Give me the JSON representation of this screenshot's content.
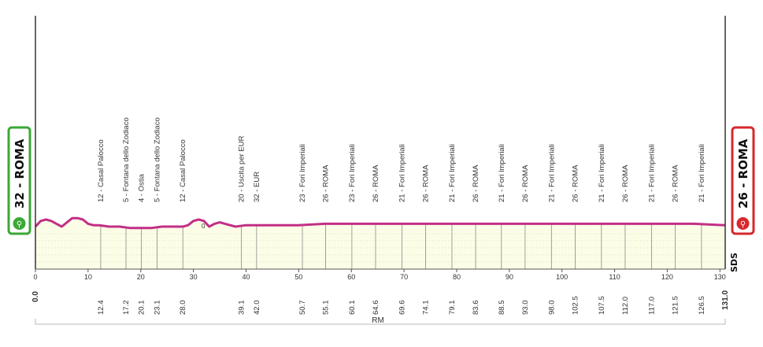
{
  "chart_data": {
    "type": "area",
    "title": "",
    "xlabel": "",
    "ylabel": "",
    "xlim": [
      0,
      131
    ],
    "x_ticks": [
      "0",
      "10",
      "20",
      "30",
      "40",
      "50",
      "60",
      "70",
      "80",
      "90",
      "100",
      "110",
      "120",
      "130"
    ],
    "x_tick_values": [
      0,
      10,
      20,
      30,
      40,
      50,
      60,
      70,
      80,
      90,
      100,
      110,
      120,
      130
    ],
    "start": {
      "label": "0.0",
      "name": "32 - ROMA",
      "color": "#3aa935"
    },
    "finish": {
      "label": "131.0",
      "name": "26 - ROMA",
      "color": "#d6282e"
    },
    "profile_color": "#c22f86",
    "fill_color": "#fbfde6",
    "sprint_marker": "0",
    "region_label": "RM",
    "logo_text": "SDS",
    "profile": {
      "x": [
        0,
        1,
        2,
        3,
        4,
        5,
        6,
        7,
        8,
        9,
        10,
        11,
        12,
        14,
        16,
        18,
        20,
        22,
        24,
        26,
        28,
        29,
        30,
        31,
        32,
        33,
        34,
        35,
        36,
        38,
        40,
        42,
        45,
        50,
        55,
        60,
        65,
        70,
        75,
        80,
        85,
        90,
        95,
        100,
        105,
        110,
        115,
        120,
        125,
        131
      ],
      "y": [
        30,
        34,
        35,
        34,
        32,
        30,
        33,
        36,
        36,
        35,
        32,
        31,
        31,
        30,
        30,
        29,
        29,
        29,
        30,
        30,
        30,
        31,
        34,
        35,
        34,
        30,
        32,
        33,
        32,
        30,
        31,
        31,
        31,
        31,
        32,
        32,
        32,
        32,
        32,
        32,
        32,
        32,
        32,
        32,
        32,
        32,
        32,
        32,
        32,
        31
      ]
    },
    "waypoints": [
      {
        "km": 12.4,
        "km_label": "12.4",
        "name": "12 - Casal Palocco"
      },
      {
        "km": 17.2,
        "km_label": "17.2",
        "name": "5 - Fontana dello Zodiaco"
      },
      {
        "km": 20.1,
        "km_label": "20.1",
        "name": "4 - Ostia"
      },
      {
        "km": 23.1,
        "km_label": "23.1",
        "name": "5 - Fontana dello Zodiaco"
      },
      {
        "km": 28.0,
        "km_label": "28.0",
        "name": "12 - Casal Palocco"
      },
      {
        "km": 39.1,
        "km_label": "39.1",
        "name": "20 - Uscita per EUR"
      },
      {
        "km": 42.0,
        "km_label": "42.0",
        "name": "32 - EUR"
      },
      {
        "km": 50.7,
        "km_label": "50.7",
        "name": "23 - Fori Imperiali"
      },
      {
        "km": 55.1,
        "km_label": "55.1",
        "name": "26 - ROMA"
      },
      {
        "km": 60.1,
        "km_label": "60.1",
        "name": "23 - Fori Imperiali"
      },
      {
        "km": 64.6,
        "km_label": "64.6",
        "name": "26 - ROMA"
      },
      {
        "km": 69.6,
        "km_label": "69.6",
        "name": "21 - Fori Imperiali"
      },
      {
        "km": 74.1,
        "km_label": "74.1",
        "name": "26 - ROMA"
      },
      {
        "km": 79.1,
        "km_label": "79.1",
        "name": "21 - Fori Imperiali"
      },
      {
        "km": 83.6,
        "km_label": "83.6",
        "name": "26 - ROMA"
      },
      {
        "km": 88.5,
        "km_label": "88.5",
        "name": "21 - Fori Imperiali"
      },
      {
        "km": 93.0,
        "km_label": "93.0",
        "name": "26 - ROMA"
      },
      {
        "km": 98.0,
        "km_label": "98.0",
        "name": "21 - Fori Imperiali"
      },
      {
        "km": 102.5,
        "km_label": "102.5",
        "name": "26 - ROMA"
      },
      {
        "km": 107.5,
        "km_label": "107.5",
        "name": "21 - Fori Imperiali"
      },
      {
        "km": 112.0,
        "km_label": "112.0",
        "name": "26 - ROMA"
      },
      {
        "km": 117.0,
        "km_label": "117.0",
        "name": "21 - Fori Imperiali"
      },
      {
        "km": 121.5,
        "km_label": "121.5",
        "name": "26 - ROMA"
      },
      {
        "km": 126.5,
        "km_label": "126.5",
        "name": "21 - Fori Imperiali"
      }
    ]
  }
}
